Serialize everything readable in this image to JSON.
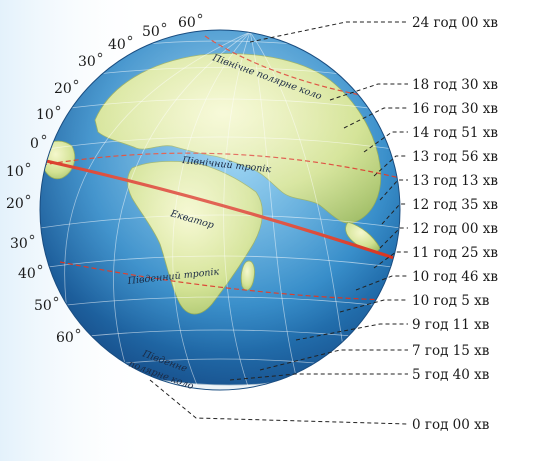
{
  "durations": [
    "24 год 00 хв",
    "18 год 30 хв",
    "16 год 30 хв",
    "14 год 51 хв",
    "13 год 56 хв",
    "13 год 13 хв",
    "12 год 35 хв",
    "12 год 00 хв",
    "11 год 25 хв",
    "10 год 46 хв",
    "10 год 5 хв",
    "9 год 11 хв",
    "7 год 15 хв",
    "5 год 40 хв",
    "0 год 00 хв"
  ],
  "latitudes_north": [
    "60",
    "50",
    "40",
    "30",
    "20",
    "10",
    "0"
  ],
  "latitudes_south": [
    "10",
    "20",
    "30",
    "40",
    "50",
    "60"
  ],
  "circles": {
    "arctic": "Північне полярне коло",
    "tropic_north": "Північний тропік",
    "equator": "Екватор",
    "tropic_south": "Південний тропік",
    "antarctic_line1": "Південне",
    "antarctic_line2": "полярне коло"
  },
  "colors": {
    "ocean": "#2a86c6",
    "land": "#dce79a",
    "equator": "#d8321e",
    "dashed": "#222222"
  }
}
